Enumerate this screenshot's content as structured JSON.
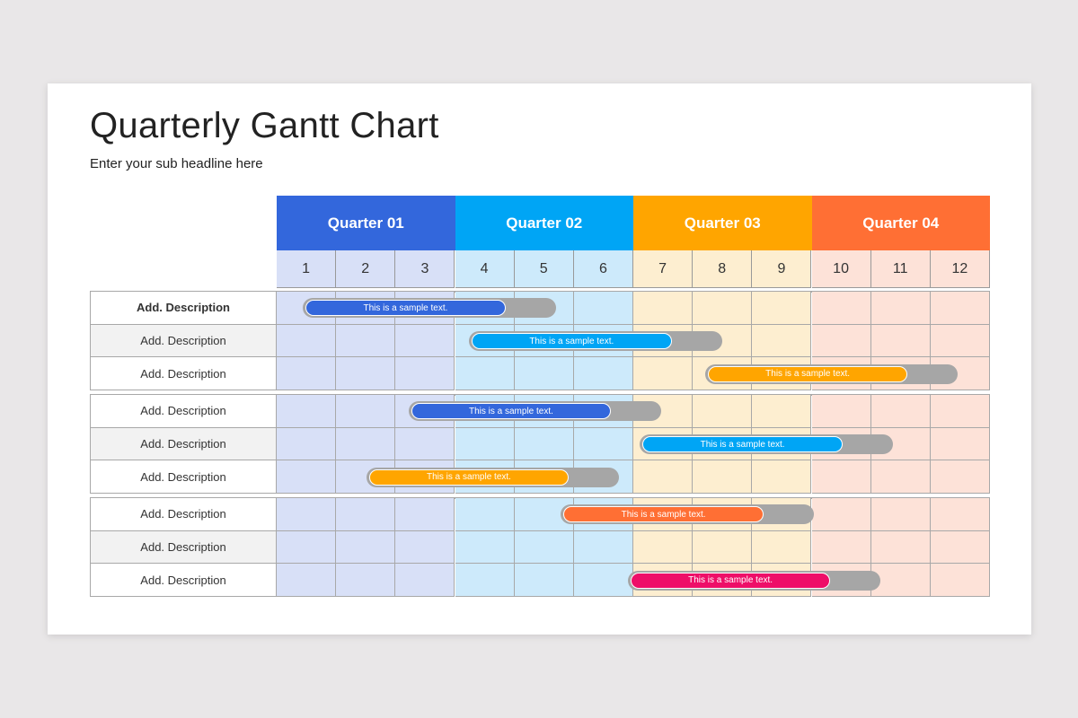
{
  "title": "Quarterly Gantt Chart",
  "subtitle": "Enter your sub headline here",
  "quarters": [
    {
      "label": "Quarter 01",
      "color": "#3367dc",
      "bg": "#d8e0f7"
    },
    {
      "label": "Quarter 02",
      "color": "#00a5f5",
      "bg": "#cdeafb"
    },
    {
      "label": "Quarter 03",
      "color": "#ffa500",
      "bg": "#fdeed0"
    },
    {
      "label": "Quarter 04",
      "color": "#ff6f34",
      "bg": "#fde2d8"
    }
  ],
  "months": [
    "1",
    "2",
    "3",
    "4",
    "5",
    "6",
    "7",
    "8",
    "9",
    "10",
    "11",
    "12"
  ],
  "chart_data": {
    "type": "gantt",
    "timeline_unit": "month",
    "range": [
      0,
      12
    ],
    "groups": [
      [
        {
          "label": "Add. Description",
          "bold": true,
          "task": {
            "text": "This is a sample text.",
            "start": 0.44,
            "end": 4.7,
            "progress": 0.79,
            "color": "#3367dc"
          }
        },
        {
          "label": "Add. Description",
          "task": {
            "text": "This is a sample text.",
            "start": 3.23,
            "end": 7.5,
            "progress": 0.79,
            "color": "#00a5f5"
          }
        },
        {
          "label": "Add. Description",
          "task": {
            "text": "This is a sample text.",
            "start": 7.21,
            "end": 11.46,
            "progress": 0.79,
            "color": "#ffa500"
          }
        }
      ],
      [
        {
          "label": "Add. Description",
          "task": {
            "text": "This is a sample text.",
            "start": 2.22,
            "end": 6.47,
            "progress": 0.79,
            "color": "#3367dc"
          }
        },
        {
          "label": "Add. Description",
          "task": {
            "text": "This is a sample text.",
            "start": 6.11,
            "end": 10.37,
            "progress": 0.79,
            "color": "#00a5f5"
          }
        },
        {
          "label": "Add. Description",
          "task": {
            "text": "This is a sample text.",
            "start": 1.51,
            "end": 5.76,
            "progress": 0.79,
            "color": "#ffa500"
          }
        }
      ],
      [
        {
          "label": "Add. Description",
          "task": {
            "text": "This is a sample text.",
            "start": 4.78,
            "end": 9.04,
            "progress": 0.79,
            "color": "#ff6f34"
          }
        },
        {
          "label": "Add. Description",
          "task": null
        },
        {
          "label": "Add. Description",
          "task": {
            "text": "This is a sample text.",
            "start": 5.91,
            "end": 10.16,
            "progress": 0.79,
            "color": "#ee0e68"
          }
        }
      ]
    ]
  }
}
